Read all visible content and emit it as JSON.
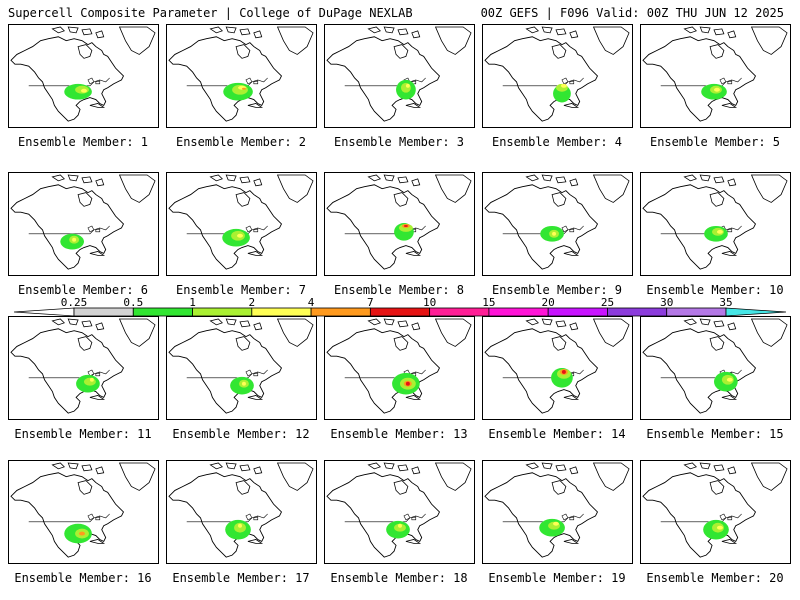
{
  "header": {
    "title": "Supercell Composite Parameter | College of DuPage NEXLAB",
    "run_info": "00Z GEFS | F096 Valid: 00Z THU JUN 12 2025"
  },
  "colorbar": {
    "ticks": [
      "0.25",
      "0.5",
      "1",
      "2",
      "4",
      "7",
      "10",
      "15",
      "20",
      "25",
      "30",
      "35"
    ],
    "colors": [
      "#ffffff",
      "#d3d3d3",
      "#32e632",
      "#aaf032",
      "#ffff55",
      "#ff9a1e",
      "#e61414",
      "#ff1e96",
      "#ff14d7",
      "#c814ff",
      "#8c3cdc",
      "#b478e6",
      "#46e6e6"
    ]
  },
  "panels": [
    {
      "label": "Ensemble Member: 1"
    },
    {
      "label": "Ensemble Member: 2"
    },
    {
      "label": "Ensemble Member: 3"
    },
    {
      "label": "Ensemble Member: 4"
    },
    {
      "label": "Ensemble Member: 5"
    },
    {
      "label": "Ensemble Member: 6"
    },
    {
      "label": "Ensemble Member: 7"
    },
    {
      "label": "Ensemble Member: 8"
    },
    {
      "label": "Ensemble Member: 9"
    },
    {
      "label": "Ensemble Member: 10"
    },
    {
      "label": "Ensemble Member: 11"
    },
    {
      "label": "Ensemble Member: 12"
    },
    {
      "label": "Ensemble Member: 13"
    },
    {
      "label": "Ensemble Member: 14"
    },
    {
      "label": "Ensemble Member: 15"
    },
    {
      "label": "Ensemble Member: 16"
    },
    {
      "label": "Ensemble Member: 17"
    },
    {
      "label": "Ensemble Member: 18"
    },
    {
      "label": "Ensemble Member: 19"
    },
    {
      "label": "Ensemble Member: 20"
    }
  ]
}
